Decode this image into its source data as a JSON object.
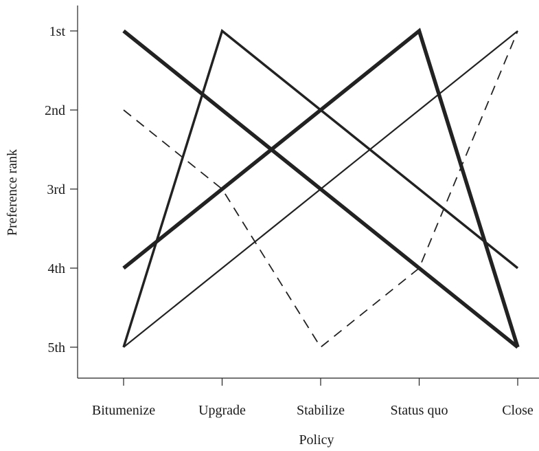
{
  "chart_data": {
    "type": "line",
    "xlabel": "Policy",
    "ylabel": "Preference rank",
    "categories": [
      "Bitumenize",
      "Upgrade",
      "Stabilize",
      "Status quo",
      "Close"
    ],
    "rank_labels": [
      "1st",
      "2nd",
      "3rd",
      "4th",
      "5th"
    ],
    "ylim": [
      1,
      5
    ],
    "y_inverted": true,
    "grid": false,
    "legend": "none",
    "series": [
      {
        "values": [
          1,
          2,
          3,
          4,
          5
        ],
        "style": "thick-solid",
        "color": "#222222"
      },
      {
        "values": [
          5,
          1,
          2,
          3,
          4
        ],
        "style": "medium-solid",
        "color": "#222222"
      },
      {
        "values": [
          4,
          3,
          2,
          1,
          5
        ],
        "style": "thick-solid",
        "color": "#222222"
      },
      {
        "values": [
          5,
          4,
          3,
          2,
          1
        ],
        "style": "thin-solid",
        "color": "#222222"
      },
      {
        "values": [
          2,
          3,
          5,
          4,
          1
        ],
        "style": "dashed",
        "color": "#222222"
      }
    ]
  }
}
